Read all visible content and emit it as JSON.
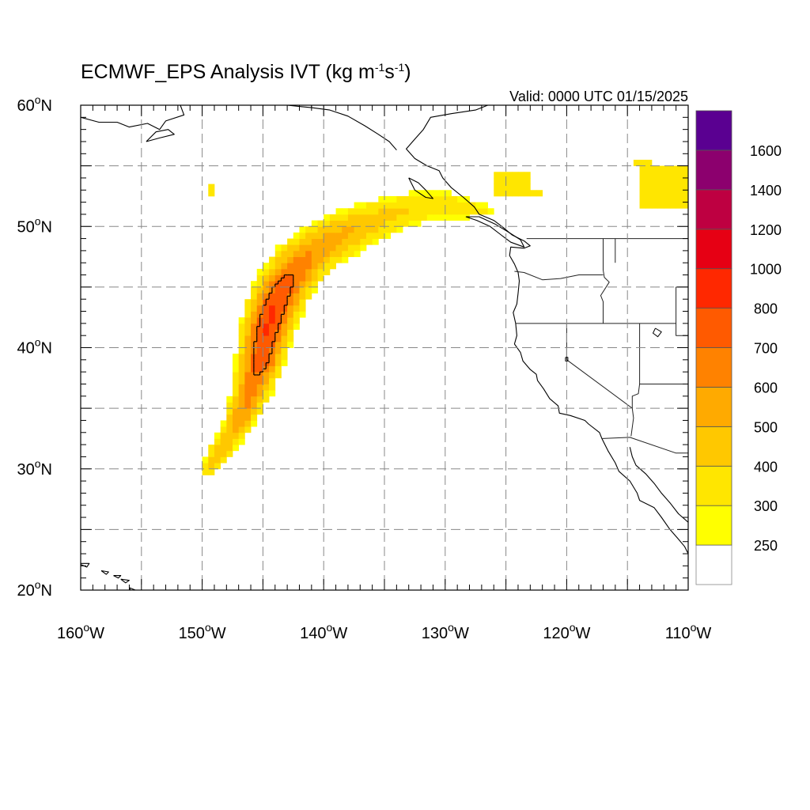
{
  "title": {
    "main": "ECMWF_EPS Analysis IVT (kg m",
    "sup1": "-1",
    "mid": "s",
    "sup2": "-1",
    "close": ")"
  },
  "valid_time": "Valid: 0000 UTC 01/15/2025",
  "map": {
    "projection": "cylindrical equidistant",
    "lon_range": [
      -160,
      -110
    ],
    "lat_range": [
      20,
      60
    ],
    "grid": "dashed every 5 degrees",
    "lon_labels": [
      {
        "lon": -160,
        "num": "160",
        "deg": "o",
        "hemi": "W"
      },
      {
        "lon": -150,
        "num": "150",
        "deg": "o",
        "hemi": "W"
      },
      {
        "lon": -140,
        "num": "140",
        "deg": "o",
        "hemi": "W"
      },
      {
        "lon": -130,
        "num": "130",
        "deg": "o",
        "hemi": "W"
      },
      {
        "lon": -120,
        "num": "120",
        "deg": "o",
        "hemi": "W"
      },
      {
        "lon": -110,
        "num": "110",
        "deg": "o",
        "hemi": "W"
      }
    ],
    "lat_labels": [
      {
        "lat": 60,
        "num": "60",
        "deg": "o",
        "hemi": "N"
      },
      {
        "lat": 50,
        "num": "50",
        "deg": "o",
        "hemi": "N"
      },
      {
        "lat": 40,
        "num": "40",
        "deg": "o",
        "hemi": "N"
      },
      {
        "lat": 30,
        "num": "30",
        "deg": "o",
        "hemi": "N"
      },
      {
        "lat": 20,
        "num": "20",
        "deg": "o",
        "hemi": "N"
      }
    ]
  },
  "colorbar": {
    "levels": [
      "250",
      "300",
      "400",
      "500",
      "600",
      "700",
      "800",
      "1000",
      "1200",
      "1400",
      "1600"
    ],
    "colors": [
      "#ffffff",
      "#ffff00",
      "#ffe600",
      "#ffc800",
      "#ffaa00",
      "#ff8200",
      "#ff5a00",
      "#ff2800",
      "#e60014",
      "#be0041",
      "#8c006e",
      "#5a0091"
    ]
  },
  "ivt_field": {
    "note_units": "kg m-1 s-1",
    "river_axis": [
      {
        "lon": -149.5,
        "lat": 30.0,
        "width": 1.2,
        "peak": 400
      },
      {
        "lon": -148.5,
        "lat": 31.5,
        "width": 1.5,
        "peak": 500
      },
      {
        "lon": -147.5,
        "lat": 33.0,
        "width": 1.7,
        "peak": 500
      },
      {
        "lon": -146.5,
        "lat": 35.0,
        "width": 2.0,
        "peak": 600
      },
      {
        "lon": -145.8,
        "lat": 37.0,
        "width": 2.3,
        "peak": 650
      },
      {
        "lon": -145.2,
        "lat": 39.0,
        "width": 2.5,
        "peak": 780
      },
      {
        "lon": -144.8,
        "lat": 41.0,
        "width": 2.7,
        "peak": 800
      },
      {
        "lon": -144.2,
        "lat": 43.0,
        "width": 2.8,
        "peak": 820
      },
      {
        "lon": -143.3,
        "lat": 45.0,
        "width": 2.9,
        "peak": 760
      },
      {
        "lon": -142.0,
        "lat": 46.8,
        "width": 3.0,
        "peak": 650
      },
      {
        "lon": -140.0,
        "lat": 48.5,
        "width": 3.0,
        "peak": 560
      },
      {
        "lon": -137.5,
        "lat": 49.8,
        "width": 2.9,
        "peak": 500
      },
      {
        "lon": -135.0,
        "lat": 50.8,
        "width": 2.7,
        "peak": 430
      },
      {
        "lon": -132.5,
        "lat": 51.5,
        "width": 2.5,
        "peak": 390
      },
      {
        "lon": -130.0,
        "lat": 51.8,
        "width": 2.3,
        "peak": 360
      },
      {
        "lon": -128.0,
        "lat": 51.5,
        "width": 1.8,
        "peak": 340
      },
      {
        "lon": -126.5,
        "lat": 51.2,
        "width": 1.2,
        "peak": 310
      }
    ],
    "isolated_patches": [
      {
        "lon": [
          -126,
          -123
        ],
        "lat": [
          52.5,
          54.5
        ],
        "value": 320
      },
      {
        "lon": [
          -124,
          -122
        ],
        "lat": [
          52.3,
          53.0
        ],
        "value": 300
      },
      {
        "lon": [
          -114,
          -110
        ],
        "lat": [
          51.5,
          55.0
        ],
        "value": 320
      },
      {
        "lon": [
          -149.5,
          -149
        ],
        "lat": [
          52.5,
          53.5
        ],
        "value": 300
      },
      {
        "lon": [
          -114.5,
          -113
        ],
        "lat": [
          54.8,
          55.3
        ],
        "value": 300
      }
    ],
    "contour_level": 700
  },
  "geography": {
    "coastline": [
      [
        -126.5,
        60
      ],
      [
        -127.5,
        59.6
      ],
      [
        -129.5,
        59.3
      ],
      [
        -131.2,
        59.0
      ],
      [
        -131.8,
        58.0
      ],
      [
        -132.5,
        57.2
      ],
      [
        -133.2,
        56.4
      ],
      [
        -132.5,
        55.6
      ],
      [
        -131.5,
        55.0
      ],
      [
        -130.5,
        54.6
      ],
      [
        -130.2,
        54.0
      ],
      [
        -129.5,
        53.2
      ],
      [
        -128.5,
        52.4
      ],
      [
        -127.6,
        51.6
      ],
      [
        -127.2,
        51.0
      ],
      [
        -126.0,
        50.5
      ],
      [
        -125.2,
        49.9
      ],
      [
        -124.5,
        49.3
      ],
      [
        -123.5,
        48.8
      ],
      [
        -123.0,
        48.4
      ],
      [
        -123.5,
        48.2
      ],
      [
        -124.6,
        48.3
      ],
      [
        -124.7,
        47.6
      ],
      [
        -124.3,
        46.9
      ],
      [
        -124.0,
        46.2
      ],
      [
        -123.9,
        45.5
      ],
      [
        -124.0,
        44.5
      ],
      [
        -124.1,
        43.6
      ],
      [
        -124.4,
        42.9
      ],
      [
        -124.2,
        42.0
      ],
      [
        -124.1,
        41.0
      ],
      [
        -124.3,
        40.3
      ],
      [
        -123.8,
        39.6
      ],
      [
        -123.6,
        38.9
      ],
      [
        -123.0,
        38.2
      ],
      [
        -122.5,
        37.8
      ],
      [
        -122.4,
        37.3
      ],
      [
        -121.9,
        36.6
      ],
      [
        -121.4,
        35.8
      ],
      [
        -120.7,
        35.2
      ],
      [
        -120.6,
        34.6
      ],
      [
        -119.7,
        34.4
      ],
      [
        -118.5,
        34.0
      ],
      [
        -118.2,
        33.7
      ],
      [
        -117.3,
        33.0
      ],
      [
        -117.1,
        32.5
      ],
      [
        -116.6,
        31.5
      ],
      [
        -116.0,
        30.5
      ],
      [
        -115.7,
        29.8
      ],
      [
        -114.8,
        29.0
      ],
      [
        -114.2,
        28.0
      ],
      [
        -114.0,
        27.4
      ],
      [
        -112.8,
        26.8
      ],
      [
        -112.2,
        26.0
      ],
      [
        -111.5,
        25.0
      ],
      [
        -110.8,
        24.2
      ],
      [
        -110.3,
        23.6
      ],
      [
        -110.0,
        23.0
      ]
    ],
    "gulf_coast": [
      [
        -114.8,
        31.8
      ],
      [
        -114.6,
        31.0
      ],
      [
        -114.3,
        30.3
      ],
      [
        -113.5,
        29.6
      ],
      [
        -112.8,
        28.8
      ],
      [
        -112.2,
        28.0
      ],
      [
        -111.5,
        27.2
      ],
      [
        -110.8,
        26.3
      ],
      [
        -110.0,
        25.6
      ]
    ],
    "vancouver_island": [
      [
        -128.3,
        50.8
      ],
      [
        -127.4,
        50.5
      ],
      [
        -126.3,
        50.0
      ],
      [
        -125.4,
        49.3
      ],
      [
        -124.6,
        48.7
      ],
      [
        -123.5,
        48.3
      ],
      [
        -123.8,
        48.9
      ],
      [
        -124.9,
        49.6
      ],
      [
        -125.9,
        50.2
      ],
      [
        -127.2,
        50.8
      ],
      [
        -128.3,
        50.8
      ]
    ],
    "haida_gwaii": [
      [
        -133.0,
        54.0
      ],
      [
        -132.2,
        53.6
      ],
      [
        -131.6,
        53.0
      ],
      [
        -131.0,
        52.3
      ],
      [
        -131.6,
        52.4
      ],
      [
        -132.5,
        53.0
      ],
      [
        -133.0,
        54.0
      ]
    ],
    "alaska_coast": [
      [
        -160,
        59.0
      ],
      [
        -158.5,
        58.6
      ],
      [
        -157.0,
        58.6
      ],
      [
        -156.0,
        58.2
      ],
      [
        -154.5,
        58.5
      ],
      [
        -153.5,
        58.0
      ],
      [
        -153.0,
        58.7
      ],
      [
        -151.5,
        59.2
      ],
      [
        -151.8,
        60.0
      ]
    ],
    "kodiak": [
      [
        -154.6,
        57.0
      ],
      [
        -153.5,
        57.3
      ],
      [
        -152.3,
        57.6
      ],
      [
        -152.8,
        58.0
      ],
      [
        -153.8,
        57.8
      ],
      [
        -154.6,
        57.0
      ]
    ],
    "gulf_alaska_coast": [
      [
        -147.0,
        60.0
      ],
      [
        -145.0,
        60.2
      ],
      [
        -143.0,
        60.0
      ],
      [
        -141.0,
        59.8
      ],
      [
        -139.5,
        59.6
      ],
      [
        -138.0,
        59.1
      ],
      [
        -136.6,
        58.3
      ],
      [
        -135.5,
        57.6
      ],
      [
        -134.6,
        57.0
      ],
      [
        -134.0,
        56.3
      ]
    ],
    "hawaii": [
      [
        [
          -160.2,
          22.2
        ],
        [
          -159.3,
          22.2
        ],
        [
          -159.5,
          21.9
        ],
        [
          -160.2,
          22.2
        ]
      ],
      [
        [
          -158.3,
          21.6
        ],
        [
          -157.7,
          21.5
        ],
        [
          -157.9,
          21.3
        ],
        [
          -158.3,
          21.6
        ]
      ],
      [
        [
          -157.3,
          21.2
        ],
        [
          -156.7,
          21.2
        ],
        [
          -156.9,
          21.0
        ],
        [
          -157.3,
          21.2
        ]
      ],
      [
        [
          -156.7,
          20.9
        ],
        [
          -156.0,
          20.8
        ],
        [
          -156.3,
          20.6
        ],
        [
          -156.7,
          20.9
        ]
      ],
      [
        [
          -156.0,
          20.2
        ],
        [
          -155.0,
          19.8
        ],
        [
          -155.5,
          19.2
        ],
        [
          -156.0,
          20.2
        ]
      ]
    ],
    "borders": [
      [
        [
          -123.3,
          49.0
        ],
        [
          -110,
          49.0
        ]
      ],
      [
        [
          -141.0,
          60.0
        ],
        [
          -141.0,
          59.8
        ]
      ],
      [
        [
          -117.1,
          32.5
        ],
        [
          -114.8,
          32.6
        ],
        [
          -111.0,
          31.3
        ],
        [
          -110.0,
          31.3
        ]
      ],
      [
        [
          -124.3,
          46.3
        ],
        [
          -123.5,
          46.2
        ],
        [
          -122.0,
          45.6
        ],
        [
          -120.5,
          45.7
        ],
        [
          -119.0,
          46.0
        ],
        [
          -117.0,
          46.0
        ]
      ],
      [
        [
          -117.0,
          49.0
        ],
        [
          -117.0,
          46.4
        ],
        [
          -116.9,
          45.8
        ],
        [
          -116.5,
          45.4
        ],
        [
          -117.2,
          44.3
        ],
        [
          -117.0,
          43.8
        ],
        [
          -117.0,
          42.0
        ]
      ],
      [
        [
          -124.2,
          42.0
        ],
        [
          -111.0,
          42.0
        ]
      ],
      [
        [
          -120.0,
          42.0
        ],
        [
          -120.0,
          39.0
        ],
        [
          -114.6,
          35.0
        ],
        [
          -114.5,
          34.2
        ],
        [
          -114.7,
          32.7
        ]
      ],
      [
        [
          -114.0,
          42.0
        ],
        [
          -114.0,
          37.0
        ],
        [
          -110,
          37.0
        ]
      ],
      [
        [
          -111.0,
          45.0
        ],
        [
          -110,
          45.0
        ]
      ],
      [
        [
          -111.0,
          45.0
        ],
        [
          -111.0,
          41.0
        ],
        [
          -110,
          41.0
        ]
      ],
      [
        [
          -114.6,
          35.0
        ],
        [
          -114.6,
          36.0
        ],
        [
          -114.1,
          36.2
        ],
        [
          -114.0,
          37.0
        ]
      ],
      [
        [
          -116.0,
          49.0
        ],
        [
          -116.0,
          48.0
        ],
        [
          -116.0,
          47.0
        ]
      ]
    ],
    "lakes": [
      [
        [
          -112.7,
          41.6
        ],
        [
          -112.2,
          41.3
        ],
        [
          -112.5,
          40.9
        ],
        [
          -112.9,
          41.2
        ],
        [
          -112.7,
          41.6
        ]
      ],
      [
        [
          -120.1,
          39.2
        ],
        [
          -119.9,
          39.2
        ],
        [
          -119.9,
          38.9
        ],
        [
          -120.1,
          38.9
        ],
        [
          -120.1,
          39.2
        ]
      ]
    ]
  }
}
